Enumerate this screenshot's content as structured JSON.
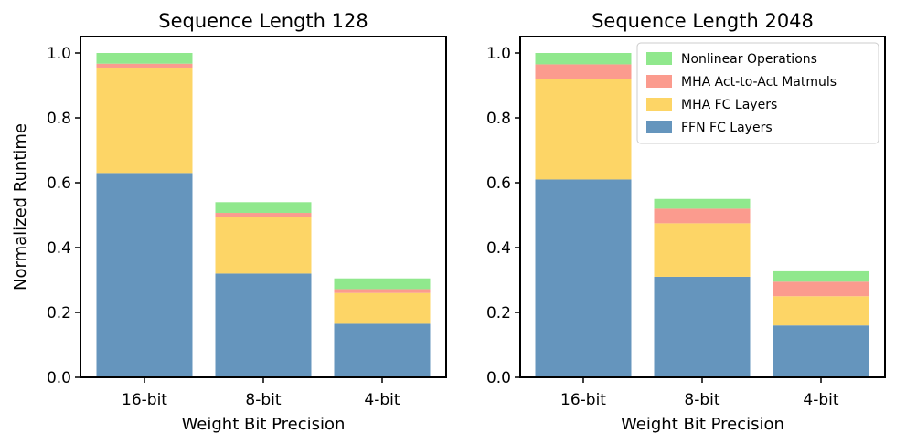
{
  "chart_data": [
    {
      "type": "bar",
      "stacked": true,
      "title": "Sequence Length 128",
      "xlabel": "Weight Bit Precision",
      "ylabel": "Normalized Runtime",
      "categories": [
        "16-bit",
        "8-bit",
        "4-bit"
      ],
      "ylim": [
        0,
        1.05
      ],
      "yticks": [
        "0.0",
        "0.2",
        "0.4",
        "0.6",
        "0.8",
        "1.0"
      ],
      "series": [
        {
          "name": "FFN FC Layers",
          "color": "#6595bd",
          "values": [
            0.63,
            0.32,
            0.165
          ]
        },
        {
          "name": "MHA FC Layers",
          "color": "#fdd566",
          "values": [
            0.325,
            0.175,
            0.095
          ]
        },
        {
          "name": "MHA Act-to-Act Matmuls",
          "color": "#fb9b8e",
          "values": [
            0.012,
            0.012,
            0.012
          ]
        },
        {
          "name": "Nonlinear Operations",
          "color": "#90e88d",
          "values": [
            0.033,
            0.033,
            0.033
          ]
        }
      ]
    },
    {
      "type": "bar",
      "stacked": true,
      "title": "Sequence Length 2048",
      "xlabel": "Weight Bit Precision",
      "ylabel": "",
      "categories": [
        "16-bit",
        "8-bit",
        "4-bit"
      ],
      "ylim": [
        0,
        1.05
      ],
      "yticks": [
        "0.0",
        "0.2",
        "0.4",
        "0.6",
        "0.8",
        "1.0"
      ],
      "legend_position": "upper-right",
      "series": [
        {
          "name": "FFN FC Layers",
          "color": "#6595bd",
          "values": [
            0.61,
            0.31,
            0.16
          ]
        },
        {
          "name": "MHA FC Layers",
          "color": "#fdd566",
          "values": [
            0.31,
            0.165,
            0.09
          ]
        },
        {
          "name": "MHA Act-to-Act Matmuls",
          "color": "#fb9b8e",
          "values": [
            0.045,
            0.045,
            0.045
          ]
        },
        {
          "name": "Nonlinear Operations",
          "color": "#90e88d",
          "values": [
            0.035,
            0.03,
            0.032
          ]
        }
      ]
    }
  ],
  "legend": [
    {
      "name": "Nonlinear Operations",
      "color": "#90e88d"
    },
    {
      "name": "MHA Act-to-Act Matmuls",
      "color": "#fb9b8e"
    },
    {
      "name": "MHA FC Layers",
      "color": "#fdd566"
    },
    {
      "name": "FFN FC Layers",
      "color": "#6595bd"
    }
  ]
}
